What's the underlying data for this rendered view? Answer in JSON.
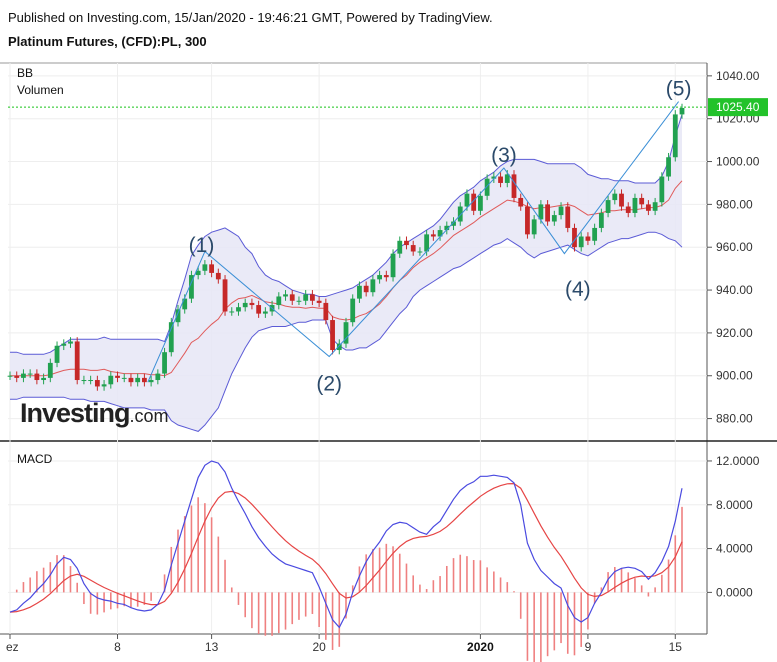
{
  "header": {
    "published": "Published on Investing.com, 15/Jan/2020 - 19:46:21 GMT, Powered by TradingView.",
    "symbol": "Platinum Futures, (CFD):PL, 300"
  },
  "brand": {
    "name": "Investing",
    "suffix": ".com"
  },
  "colors": {
    "up": "#21a150",
    "down": "#c62828",
    "band": "#5b5bd6",
    "band_fill": "#e6e6f6",
    "mid": "#e05a5a",
    "wave": "#3b8fd6",
    "macd": "#4a4ae0",
    "signal": "#e64545",
    "hist": "#ef8080",
    "price_line": "#18c418"
  },
  "chart_data": [
    {
      "type": "candlestick",
      "indicator_labels": [
        "BB",
        "Volumen"
      ],
      "x_ticks": [
        "ez",
        "8",
        "13",
        "20",
        "2020",
        "9",
        "15"
      ],
      "y_ticks": [
        "880.00",
        "900.00",
        "920.00",
        "940.00",
        "960.00",
        "980.00",
        "1000.00",
        "1020.00",
        "1040.00"
      ],
      "ylim": [
        870,
        1046
      ],
      "last_price": 1025.4,
      "last_price_label": "1025.40",
      "wave_labels": [
        {
          "label": "(1)",
          "i": 28.5,
          "price": 955
        },
        {
          "label": "(2)",
          "i": 47.5,
          "price": 909
        },
        {
          "label": "(3)",
          "i": 73.5,
          "price": 997
        },
        {
          "label": "(4)",
          "i": 84.5,
          "price": 953
        },
        {
          "label": "(5)",
          "i": 99.5,
          "price": 1028
        }
      ],
      "wave_path": [
        [
          20.5,
          897
        ],
        [
          29,
          958
        ],
        [
          47.5,
          909
        ],
        [
          73.5,
          997
        ],
        [
          82.5,
          957
        ],
        [
          99.5,
          1028
        ]
      ],
      "close": [
        900,
        899,
        901,
        901,
        898,
        899,
        906,
        914,
        915,
        916,
        898,
        898,
        898,
        895,
        896,
        900,
        899,
        899,
        897,
        899,
        897,
        898,
        901,
        911,
        925,
        931,
        936,
        947,
        949,
        952,
        948,
        945,
        930,
        930,
        932,
        934,
        933,
        929,
        930,
        933,
        937,
        938,
        935,
        935,
        938,
        935,
        934,
        926,
        912,
        915,
        925,
        936,
        942,
        939,
        945,
        947,
        946,
        957,
        963,
        961,
        958,
        958,
        966,
        965,
        968,
        970,
        972,
        979,
        985,
        977,
        984,
        992,
        993,
        990,
        994,
        983,
        979,
        966,
        973,
        980,
        972,
        975,
        979,
        969,
        960,
        965,
        963,
        969,
        976,
        982,
        985,
        979,
        976,
        983,
        980,
        977,
        981,
        993,
        1002,
        1022,
        1025
      ],
      "bb_upper": [
        911,
        911,
        910,
        910,
        910,
        910,
        911,
        913,
        915,
        917,
        917,
        917,
        917,
        917,
        918,
        917,
        917,
        917,
        917,
        917,
        917,
        917,
        917,
        916,
        924,
        935,
        945,
        956,
        961,
        965,
        967,
        968,
        969,
        967,
        965,
        960,
        957,
        951,
        947,
        945,
        944,
        942,
        940,
        939,
        938,
        938,
        937,
        937,
        938,
        939,
        940,
        941,
        943,
        945,
        947,
        950,
        953,
        957,
        960,
        962,
        964,
        966,
        968,
        970,
        973,
        977,
        981,
        984,
        986,
        988,
        991,
        993,
        995,
        998,
        1000,
        1001,
        1001,
        1001,
        1001,
        1000,
        999,
        999,
        999,
        999,
        999,
        997,
        994,
        993,
        992,
        992,
        991,
        991,
        991,
        990,
        990,
        990,
        990,
        993,
        1000,
        1012,
        1022
      ],
      "bb_lower": [
        889,
        889,
        890,
        890,
        890,
        890,
        890,
        890,
        890,
        889,
        889,
        889,
        888,
        888,
        888,
        887,
        886,
        885,
        885,
        885,
        885,
        884,
        884,
        884,
        879,
        877,
        876,
        875,
        874,
        877,
        881,
        885,
        893,
        901,
        907,
        913,
        918,
        921,
        922,
        923,
        923,
        923,
        924,
        925,
        925,
        926,
        926,
        926,
        917,
        914,
        912,
        912,
        913,
        913,
        915,
        917,
        921,
        925,
        929,
        932,
        937,
        940,
        942,
        944,
        946,
        948,
        950,
        951,
        953,
        955,
        957,
        959,
        961,
        962,
        964,
        962,
        960,
        957,
        955,
        957,
        958,
        959,
        960,
        961,
        959,
        957,
        956,
        958,
        960,
        962,
        963,
        964,
        964,
        965,
        966,
        967,
        967,
        966,
        964,
        963,
        960
      ],
      "macd": [
        -1.8,
        -1.6,
        -1.0,
        -0.5,
        0.2,
        0.8,
        1.6,
        2.6,
        3.2,
        3.0,
        2.2,
        0.8,
        -0.1,
        -0.5,
        -0.7,
        -0.8,
        -1.0,
        -1.1,
        -1.4,
        -1.6,
        -1.7,
        -1.6,
        -1.1,
        0.2,
        2.5,
        4.5,
        6.5,
        8.5,
        10.5,
        11.6,
        12.0,
        11.8,
        11.0,
        9.5,
        8.3,
        7.2,
        6.0,
        5.0,
        4.2,
        3.5,
        3.0,
        2.6,
        2.4,
        2.2,
        2.0,
        1.8,
        0.5,
        -1.0,
        -2.5,
        -3.2,
        -2.0,
        0.0,
        1.5,
        2.8,
        3.8,
        4.6,
        5.6,
        6.2,
        6.4,
        6.3,
        5.9,
        5.5,
        5.3,
        6.0,
        6.5,
        7.5,
        8.5,
        9.3,
        9.8,
        10.1,
        10.6,
        10.6,
        10.7,
        10.6,
        10.5,
        10.0,
        8.0,
        4.5,
        3.0,
        2.0,
        1.4,
        0.8,
        0.4,
        -1.2,
        -2.3,
        -2.7,
        -2.3,
        -1.0,
        0.0,
        1.2,
        1.9,
        2.2,
        2.3,
        2.2,
        1.9,
        1.2,
        1.8,
        2.8,
        4.2,
        6.5,
        9.5
      ]
    },
    {
      "type": "line",
      "title": "MACD",
      "y_ticks": [
        "0.0000",
        "4.0000",
        "8.0000",
        "12.0000"
      ],
      "ylim": [
        -3.8,
        13.0
      ]
    }
  ]
}
